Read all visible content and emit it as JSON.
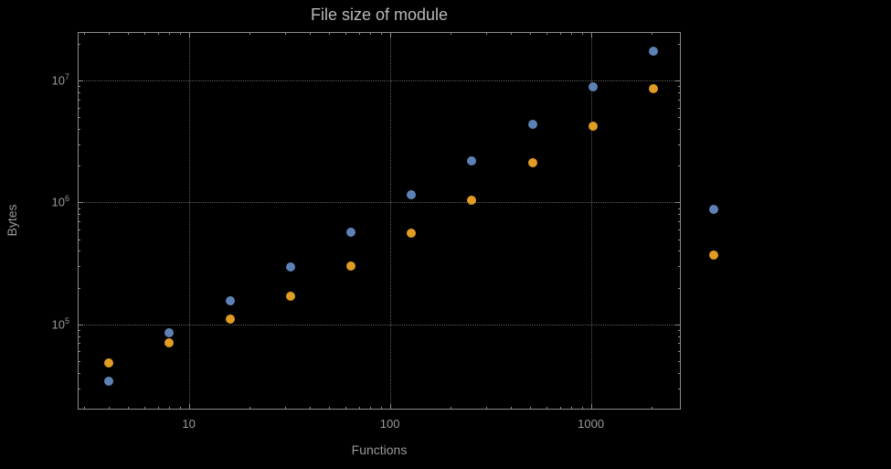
{
  "chart_data": {
    "type": "scatter",
    "title": "File size of module",
    "xlabel": "Functions",
    "ylabel": "Bytes",
    "x_scale": "log",
    "y_scale": "log",
    "grid": "dotted-at-major-ticks",
    "legend": "none",
    "x_range": [
      2.8,
      2800
    ],
    "y_range": [
      20000,
      25000000
    ],
    "x": [
      4,
      8,
      16,
      32,
      64,
      128,
      256,
      512,
      1024,
      2048,
      4096
    ],
    "series": [
      {
        "name": "series-1",
        "color": "#5E81B5",
        "values": [
          34000,
          85000,
          155000,
          295000,
          570000,
          1150000,
          2200000,
          4400000,
          8800000,
          17500000,
          870000
        ]
      },
      {
        "name": "series-2",
        "color": "#E19C24",
        "values": [
          48000,
          70000,
          110000,
          170000,
          300000,
          560000,
          1050000,
          2100000,
          4200000,
          8500000,
          370000
        ]
      }
    ],
    "x_ticks": [
      {
        "value": 10,
        "label": "10"
      },
      {
        "value": 100,
        "label": "100"
      },
      {
        "value": 1000,
        "label": "1000"
      }
    ],
    "y_ticks": [
      {
        "value": 100000,
        "label": "10^5"
      },
      {
        "value": 1000000,
        "label": "10^6"
      },
      {
        "value": 10000000,
        "label": "10^7"
      }
    ]
  },
  "colors": {
    "background": "#000000",
    "frame": "#8c8c8c",
    "grid": "#5c5c5c",
    "text": "#9a9a9a",
    "title": "#b9b9b9",
    "series1": "#5E81B5",
    "series2": "#E19C24"
  }
}
